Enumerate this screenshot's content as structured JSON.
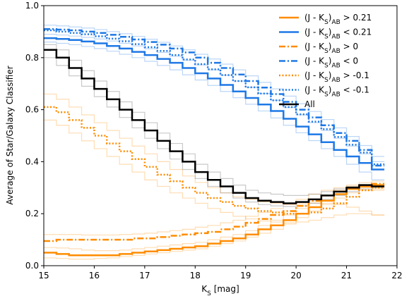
{
  "chart_data": {
    "type": "line",
    "xlabel": "K_S [mag]",
    "ylabel": "Average of Star/Galaxy Classifier",
    "xlim": [
      15,
      22
    ],
    "ylim": [
      0.0,
      1.0
    ],
    "xticks": [
      "15",
      "16",
      "17",
      "18",
      "19",
      "20",
      "21",
      "22"
    ],
    "yticks": [
      "0.0",
      "0.2",
      "0.4",
      "0.6",
      "0.8",
      "1.0"
    ],
    "legend_position": "top-right",
    "step": 0.25,
    "x_start": 15.0,
    "series": [
      {
        "name": "(J - K_S)_AB > 0.21",
        "color": "#ff8c00",
        "style": "solid",
        "values": [
          0.05,
          0.045,
          0.04,
          0.04,
          0.04,
          0.04,
          0.045,
          0.05,
          0.055,
          0.06,
          0.065,
          0.07,
          0.075,
          0.085,
          0.095,
          0.105,
          0.12,
          0.14,
          0.155,
          0.175,
          0.2,
          0.225,
          0.25,
          0.275,
          0.295,
          0.305,
          0.31
        ]
      },
      {
        "name": "(J - K_S)_AB < 0.21",
        "color": "#1e78e6",
        "style": "solid",
        "values": [
          0.875,
          0.872,
          0.868,
          0.862,
          0.855,
          0.845,
          0.835,
          0.822,
          0.81,
          0.795,
          0.78,
          0.76,
          0.74,
          0.72,
          0.695,
          0.67,
          0.645,
          0.62,
          0.595,
          0.565,
          0.535,
          0.505,
          0.475,
          0.445,
          0.42,
          0.395,
          0.37
        ]
      },
      {
        "name": "(J - K_S)_AB > 0",
        "color": "#ff8c00",
        "style": "dashdot",
        "values": [
          0.095,
          0.1,
          0.1,
          0.1,
          0.1,
          0.1,
          0.1,
          0.105,
          0.105,
          0.11,
          0.115,
          0.12,
          0.125,
          0.13,
          0.14,
          0.15,
          0.165,
          0.18,
          0.195,
          0.21,
          0.23,
          0.25,
          0.27,
          0.285,
          0.3,
          0.31,
          0.315
        ]
      },
      {
        "name": "(J - K_S)_AB < 0",
        "color": "#1e78e6",
        "style": "dashdot",
        "values": [
          0.91,
          0.908,
          0.905,
          0.9,
          0.895,
          0.888,
          0.88,
          0.87,
          0.86,
          0.85,
          0.835,
          0.82,
          0.8,
          0.78,
          0.76,
          0.735,
          0.71,
          0.685,
          0.66,
          0.63,
          0.6,
          0.57,
          0.54,
          0.51,
          0.48,
          0.445,
          0.385
        ]
      },
      {
        "name": "(J - K_S)_AB > -0.1",
        "color": "#ff8c00",
        "style": "dotted",
        "values": [
          0.61,
          0.59,
          0.56,
          0.53,
          0.5,
          0.47,
          0.44,
          0.41,
          0.38,
          0.35,
          0.325,
          0.3,
          0.28,
          0.26,
          0.245,
          0.23,
          0.22,
          0.21,
          0.205,
          0.2,
          0.2,
          0.205,
          0.22,
          0.24,
          0.265,
          0.29,
          0.3
        ]
      },
      {
        "name": "(J - K_S)_AB < -0.1",
        "color": "#1e78e6",
        "style": "dotted",
        "values": [
          0.905,
          0.9,
          0.895,
          0.89,
          0.882,
          0.873,
          0.863,
          0.852,
          0.84,
          0.826,
          0.81,
          0.793,
          0.775,
          0.755,
          0.733,
          0.71,
          0.686,
          0.662,
          0.636,
          0.61,
          0.582,
          0.554,
          0.525,
          0.495,
          0.465,
          0.435,
          0.39
        ]
      },
      {
        "name": "All",
        "color": "#000000",
        "style": "solid",
        "values": [
          0.83,
          0.8,
          0.76,
          0.72,
          0.68,
          0.64,
          0.6,
          0.56,
          0.52,
          0.48,
          0.44,
          0.4,
          0.36,
          0.33,
          0.305,
          0.28,
          0.26,
          0.25,
          0.245,
          0.24,
          0.245,
          0.255,
          0.27,
          0.285,
          0.3,
          0.31,
          0.305
        ]
      }
    ],
    "faint_band_curves": [
      {
        "color": "#ff8c00",
        "values": [
          0.03,
          0.028,
          0.025,
          0.025,
          0.028,
          0.03,
          0.035,
          0.04,
          0.045,
          0.05,
          0.055,
          0.06,
          0.065,
          0.075,
          0.085,
          0.095,
          0.11,
          0.125,
          0.14,
          0.16,
          0.185,
          0.21,
          0.235,
          0.26,
          0.28,
          0.29,
          0.295
        ]
      },
      {
        "color": "#ff8c00",
        "values": [
          0.07,
          0.068,
          0.065,
          0.06,
          0.058,
          0.058,
          0.06,
          0.065,
          0.07,
          0.075,
          0.08,
          0.085,
          0.09,
          0.1,
          0.11,
          0.12,
          0.135,
          0.155,
          0.175,
          0.195,
          0.22,
          0.245,
          0.27,
          0.29,
          0.31,
          0.32,
          0.325
        ]
      },
      {
        "color": "#ff8c00",
        "values": [
          0.12,
          0.12,
          0.12,
          0.118,
          0.118,
          0.118,
          0.12,
          0.122,
          0.125,
          0.13,
          0.135,
          0.14,
          0.148,
          0.155,
          0.165,
          0.175,
          0.19,
          0.205,
          0.22,
          0.235,
          0.255,
          0.275,
          0.29,
          0.3,
          0.305,
          0.3,
          0.29
        ]
      },
      {
        "color": "#ff8c00",
        "values": [
          0.56,
          0.54,
          0.51,
          0.48,
          0.45,
          0.42,
          0.39,
          0.36,
          0.33,
          0.305,
          0.28,
          0.26,
          0.24,
          0.22,
          0.205,
          0.19,
          0.18,
          0.172,
          0.168,
          0.165,
          0.168,
          0.175,
          0.185,
          0.195,
          0.2,
          0.2,
          0.195
        ]
      },
      {
        "color": "#ff8c00",
        "values": [
          0.66,
          0.64,
          0.61,
          0.58,
          0.55,
          0.52,
          0.49,
          0.46,
          0.43,
          0.4,
          0.37,
          0.345,
          0.32,
          0.3,
          0.28,
          0.265,
          0.255,
          0.245,
          0.24,
          0.238,
          0.238,
          0.24,
          0.24,
          0.235,
          0.225,
          0.21,
          0.195
        ]
      },
      {
        "color": "#1e78e6",
        "values": [
          0.86,
          0.855,
          0.85,
          0.843,
          0.835,
          0.825,
          0.813,
          0.8,
          0.786,
          0.77,
          0.753,
          0.734,
          0.714,
          0.693,
          0.67,
          0.646,
          0.621,
          0.595,
          0.568,
          0.54,
          0.511,
          0.481,
          0.45,
          0.42,
          0.39,
          0.36,
          0.33
        ]
      },
      {
        "color": "#1e78e6",
        "values": [
          0.89,
          0.887,
          0.883,
          0.878,
          0.872,
          0.864,
          0.855,
          0.845,
          0.834,
          0.82,
          0.806,
          0.79,
          0.772,
          0.753,
          0.732,
          0.71,
          0.686,
          0.662,
          0.636,
          0.608,
          0.58,
          0.55,
          0.52,
          0.49,
          0.46,
          0.43,
          0.4
        ]
      },
      {
        "color": "#1e78e6",
        "values": [
          0.925,
          0.922,
          0.918,
          0.914,
          0.908,
          0.9,
          0.892,
          0.882,
          0.871,
          0.859,
          0.845,
          0.83,
          0.813,
          0.795,
          0.775,
          0.753,
          0.73,
          0.705,
          0.68,
          0.652,
          0.623,
          0.593,
          0.562,
          0.53,
          0.497,
          0.462,
          0.42
        ]
      },
      {
        "color": "#888888",
        "values": [
          0.8,
          0.77,
          0.73,
          0.69,
          0.65,
          0.61,
          0.57,
          0.53,
          0.49,
          0.45,
          0.41,
          0.37,
          0.335,
          0.305,
          0.28,
          0.26,
          0.245,
          0.235,
          0.23,
          0.228,
          0.23,
          0.24,
          0.255,
          0.27,
          0.285,
          0.295,
          0.3
        ]
      },
      {
        "color": "#888888",
        "values": [
          0.85,
          0.83,
          0.79,
          0.75,
          0.71,
          0.67,
          0.63,
          0.59,
          0.55,
          0.51,
          0.47,
          0.43,
          0.39,
          0.36,
          0.335,
          0.31,
          0.29,
          0.28,
          0.275,
          0.27,
          0.27,
          0.275,
          0.285,
          0.295,
          0.305,
          0.31,
          0.31
        ]
      }
    ]
  }
}
